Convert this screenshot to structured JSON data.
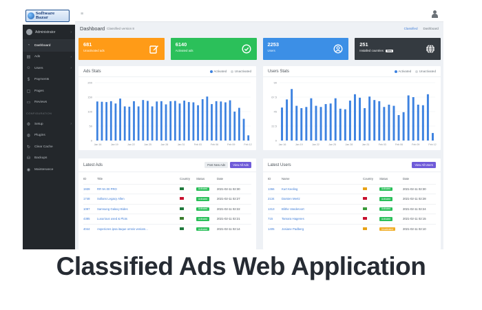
{
  "logo": {
    "text_line1": "Software",
    "text_line2": "Bazar"
  },
  "sidebar": {
    "admin_label": "Administrator",
    "items": [
      {
        "label": "Dashboard",
        "icon": "dashboard-icon",
        "active": true
      },
      {
        "label": "Ads",
        "icon": "ads-icon",
        "caret": true
      },
      {
        "label": "Users",
        "icon": "users-icon",
        "caret": true
      },
      {
        "label": "Payments",
        "icon": "dollar-icon"
      },
      {
        "label": "Pages",
        "icon": "pages-icon"
      },
      {
        "label": "Reviews",
        "icon": "reviews-icon"
      }
    ],
    "section_label": "CONFIGURATION",
    "config_items": [
      {
        "label": "Setup",
        "icon": "gear-icon",
        "caret": true
      },
      {
        "label": "Plugins",
        "icon": "plugin-icon"
      },
      {
        "label": "Clear Cache",
        "icon": "refresh-icon"
      },
      {
        "label": "Backups",
        "icon": "database-icon"
      },
      {
        "label": "Maintenance",
        "icon": "maintenance-icon"
      }
    ]
  },
  "header": {
    "title": "Dashboard",
    "subtitle": "Classified version 8",
    "breadcrumb_link": "Classified",
    "breadcrumb_current": "Dashboard"
  },
  "stats": [
    {
      "value": "681",
      "label": "Unactivated ads",
      "icon": "edit-icon",
      "color": "#ff9b17"
    },
    {
      "value": "6140",
      "label": "Activated ads",
      "icon": "check-circle-icon",
      "color": "#2bc05a"
    },
    {
      "value": "2253",
      "label": "Users",
      "icon": "user-circle-icon",
      "color": "#3c8fe6"
    },
    {
      "value": "251",
      "label": "Installed countries",
      "badge": "New",
      "icon": "globe-icon",
      "color": "#343a40"
    }
  ],
  "legend": {
    "activated": "Activated",
    "unactivated": "Unactivated"
  },
  "colors": {
    "activated": "#3d82e0",
    "unactivated": "#d6d9dc"
  },
  "ads_stats": {
    "title": "Ads Stats",
    "chart_data": {
      "type": "bar",
      "ylim": [
        0,
        200
      ],
      "yticks": [
        "200",
        "150",
        "100",
        "50",
        "0"
      ],
      "xticks": [
        "Jan 16",
        "Jan 19",
        "Jan 22",
        "Jan 25",
        "Jan 28",
        "Jan 31",
        "Feb 03",
        "Feb 06",
        "Feb 09",
        "Feb 12"
      ],
      "series": [
        {
          "name": "Activated",
          "values": [
            135,
            134,
            133,
            136,
            128,
            145,
            118,
            117,
            136,
            118,
            140,
            137,
            118,
            135,
            136,
            125,
            136,
            137,
            128,
            138,
            133,
            132,
            122,
            143,
            152,
            126,
            136,
            135,
            132,
            139,
            100,
            113,
            75,
            18
          ]
        }
      ]
    }
  },
  "users_stats": {
    "title": "Users Stats",
    "chart_data": {
      "type": "bar",
      "ylim": [
        0,
        100
      ],
      "yticks": [
        "90",
        "67.5",
        "45",
        "22.5",
        "0"
      ],
      "xticks": [
        "Jan 16",
        "Jan 19",
        "Jan 22",
        "Jan 25",
        "Jan 28",
        "Jan 31",
        "Feb 03",
        "Feb 06",
        "Feb 09",
        "Feb 12"
      ],
      "series": [
        {
          "name": "Activated",
          "values": [
            57,
            71,
            89,
            60,
            56,
            58,
            73,
            60,
            58,
            63,
            64,
            73,
            55,
            54,
            69,
            80,
            74,
            56,
            76,
            70,
            68,
            58,
            62,
            60,
            44,
            49,
            78,
            75,
            62,
            61,
            80,
            13
          ]
        }
      ]
    }
  },
  "latest_ads": {
    "title": "Latest Ads",
    "btn_post": "Post New Ads",
    "btn_view": "View All Ads",
    "columns": [
      "ID",
      "Title",
      "Country",
      "Status",
      "Date"
    ],
    "rows": [
      [
        "1939",
        "RR 9A 00 PRO",
        "",
        "Activated",
        "2021-02-11 02:30"
      ],
      [
        "1748",
        "Sollans Legacy Allen",
        "",
        "Activated",
        "2021-02-11 02:27"
      ],
      [
        "1097",
        "Samsung Galaxy Bides",
        "",
        "Activated",
        "2021-02-11 02:22"
      ],
      [
        "4385",
        "Luxurious used & Plots",
        "",
        "Activated",
        "2021-02-11 02:21"
      ],
      [
        "4044",
        "Asperiores ipsa itaque omnis veniam...",
        "",
        "Activated",
        "2021-02-11 02:14"
      ]
    ],
    "flag_colors": [
      "#1f7a3d",
      "#c8102e",
      "#1f7a3d",
      "#3a7d2c",
      "#1f7a3d"
    ]
  },
  "latest_users": {
    "title": "Latest Users",
    "btn_view": "View All Users",
    "columns": [
      "ID",
      "Name",
      "Country",
      "Status",
      "Date"
    ],
    "rows": [
      [
        "1366",
        "Kurt Keeling",
        "",
        "Activated",
        "2021-02-11 02:30"
      ],
      [
        "2134",
        "Damien Mertz",
        "",
        "Activated",
        "2021-02-11 02:28"
      ],
      [
        "1313",
        "Blithe Vandervort",
        "",
        "Activated",
        "2021-02-11 02:24"
      ],
      [
        "715",
        "Tamara Hagenes",
        "",
        "Activated",
        "2021-02-11 02:15"
      ],
      [
        "1405",
        "Josiane Padberg",
        "",
        "Unactivated",
        "2021-02-11 02:10"
      ]
    ],
    "flag_colors": [
      "#e8a317",
      "#c8102e",
      "#3a9b3a",
      "#c8102e",
      "#e8a317"
    ]
  },
  "caption": "Classified Ads Web Application"
}
